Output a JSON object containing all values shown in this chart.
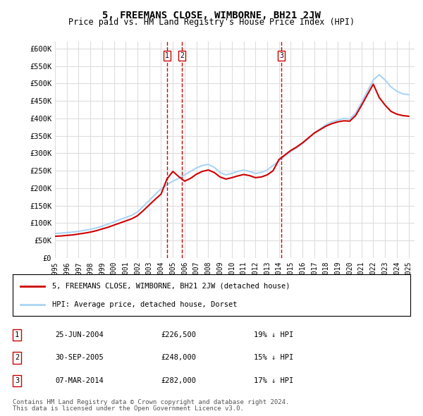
{
  "title": "5, FREEMANS CLOSE, WIMBORNE, BH21 2JW",
  "subtitle": "Price paid vs. HM Land Registry's House Price Index (HPI)",
  "hpi_color": "#aad4f5",
  "price_color": "#cc0000",
  "dashed_color": "#cc0000",
  "background_color": "#ffffff",
  "grid_color": "#dddddd",
  "ylim": [
    0,
    620000
  ],
  "yticks": [
    0,
    50000,
    100000,
    150000,
    200000,
    250000,
    300000,
    350000,
    400000,
    450000,
    500000,
    550000,
    600000
  ],
  "ytick_labels": [
    "£0",
    "£50K",
    "£100K",
    "£150K",
    "£200K",
    "£250K",
    "£300K",
    "£350K",
    "£400K",
    "£450K",
    "£500K",
    "£550K",
    "£600K"
  ],
  "legend_label_red": "5, FREEMANS CLOSE, WIMBORNE, BH21 2JW (detached house)",
  "legend_label_blue": "HPI: Average price, detached house, Dorset",
  "transactions": [
    {
      "num": 1,
      "date": "25-JUN-2004",
      "price": "£226,500",
      "pct": "19%",
      "dir": "↓",
      "x_year": 2004.5
    },
    {
      "num": 2,
      "date": "30-SEP-2005",
      "price": "£248,000",
      "pct": "15%",
      "dir": "↓",
      "x_year": 2005.75
    },
    {
      "num": 3,
      "date": "07-MAR-2014",
      "price": "£282,000",
      "pct": "17%",
      "dir": "↓",
      "x_year": 2014.2
    }
  ],
  "footer1": "Contains HM Land Registry data © Crown copyright and database right 2024.",
  "footer2": "This data is licensed under the Open Government Licence v3.0.",
  "hpi_data_x": [
    1995,
    1995.5,
    1996,
    1996.5,
    1997,
    1997.5,
    1998,
    1998.5,
    1999,
    1999.5,
    2000,
    2000.5,
    2001,
    2001.5,
    2002,
    2002.5,
    2003,
    2003.5,
    2004,
    2004.5,
    2005,
    2005.5,
    2006,
    2006.5,
    2007,
    2007.5,
    2008,
    2008.5,
    2009,
    2009.5,
    2010,
    2010.5,
    2011,
    2011.5,
    2012,
    2012.5,
    2013,
    2013.5,
    2014,
    2014.5,
    2015,
    2015.5,
    2016,
    2016.5,
    2017,
    2017.5,
    2018,
    2018.5,
    2019,
    2019.5,
    2020,
    2020.5,
    2021,
    2021.5,
    2022,
    2022.5,
    2023,
    2023.5,
    2024,
    2024.5,
    2025
  ],
  "hpi_data_y": [
    70000,
    71000,
    72500,
    74000,
    76000,
    79000,
    82000,
    86000,
    91000,
    97000,
    103000,
    110000,
    116000,
    122000,
    132000,
    148000,
    165000,
    182000,
    198000,
    210000,
    220000,
    228000,
    238000,
    248000,
    258000,
    265000,
    268000,
    260000,
    245000,
    238000,
    242000,
    248000,
    252000,
    248000,
    242000,
    245000,
    252000,
    265000,
    278000,
    292000,
    305000,
    315000,
    328000,
    342000,
    358000,
    370000,
    382000,
    390000,
    395000,
    400000,
    398000,
    415000,
    445000,
    478000,
    510000,
    525000,
    510000,
    490000,
    478000,
    470000,
    468000
  ],
  "price_data_x": [
    1995,
    1995.5,
    1996,
    1996.5,
    1997,
    1997.5,
    1998,
    1998.5,
    1999,
    1999.5,
    2000,
    2000.5,
    2001,
    2001.5,
    2002,
    2002.5,
    2003,
    2003.5,
    2004,
    2004.5,
    2005,
    2005.5,
    2006,
    2006.5,
    2007,
    2007.5,
    2008,
    2008.5,
    2009,
    2009.5,
    2010,
    2010.5,
    2011,
    2011.5,
    2012,
    2012.5,
    2013,
    2013.5,
    2014,
    2014.5,
    2015,
    2015.5,
    2016,
    2016.5,
    2017,
    2017.5,
    2018,
    2018.5,
    2019,
    2019.5,
    2020,
    2020.5,
    2021,
    2021.5,
    2022,
    2022.5,
    2023,
    2023.5,
    2024,
    2024.5,
    2025
  ],
  "price_data_y": [
    62000,
    63000,
    64500,
    66000,
    68500,
    71000,
    74000,
    78000,
    83000,
    88000,
    94000,
    100000,
    106000,
    112000,
    121000,
    136000,
    152000,
    168000,
    183000,
    226500,
    248000,
    233000,
    220000,
    228000,
    240000,
    248000,
    252000,
    245000,
    232000,
    226000,
    230000,
    235000,
    239000,
    236000,
    230000,
    232000,
    238000,
    250000,
    282000,
    295000,
    308000,
    318000,
    330000,
    344000,
    358000,
    368000,
    378000,
    385000,
    390000,
    393000,
    392000,
    408000,
    437000,
    468000,
    498000,
    460000,
    438000,
    420000,
    412000,
    408000,
    406000
  ],
  "xlim": [
    1995,
    2025.5
  ],
  "xticks": [
    1995,
    1996,
    1997,
    1998,
    1999,
    2000,
    2001,
    2002,
    2003,
    2004,
    2005,
    2006,
    2007,
    2008,
    2009,
    2010,
    2011,
    2012,
    2013,
    2014,
    2015,
    2016,
    2017,
    2018,
    2019,
    2020,
    2021,
    2022,
    2023,
    2024,
    2025
  ]
}
